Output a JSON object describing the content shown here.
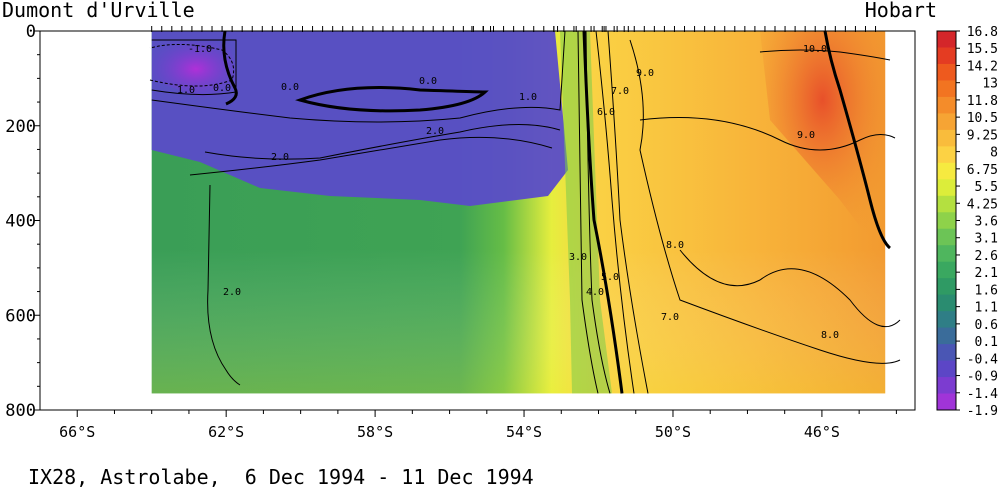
{
  "chart_data": {
    "type": "heatmap",
    "title": "IX28, Astrolabe,  6 Dec 1994 - 11 Dec 1994",
    "left_label": "Dumont d'Urville",
    "right_label": "Hobart",
    "x_ticks": [
      "66°S",
      "62°S",
      "58°S",
      "54°S",
      "50°S",
      "46°S"
    ],
    "x_tick_values": [
      66,
      62,
      58,
      54,
      50,
      46
    ],
    "xlim": [
      67,
      43.5
    ],
    "y_ticks": [
      "0",
      "200",
      "400",
      "600",
      "800"
    ],
    "y_tick_values": [
      0,
      200,
      400,
      600,
      800
    ],
    "ylim": [
      0,
      800
    ],
    "data_extent": {
      "lat": [
        64,
        44.3
      ],
      "depth": [
        0,
        765
      ]
    },
    "colorbar": {
      "labels": [
        "16.8",
        "15.5",
        "14.2",
        "13",
        "11.8",
        "10.5",
        "9.25",
        "8",
        "6.75",
        "5.5",
        "4.25",
        "3.6",
        "3.1",
        "2.6",
        "2.1",
        "1.6",
        "1.1",
        "0.6",
        "0.1",
        "-0.4",
        "-0.9",
        "-1.4",
        "-1.9"
      ],
      "colors": [
        "#d4262a",
        "#e43c22",
        "#ee5a1e",
        "#f27421",
        "#f48c2a",
        "#f6a434",
        "#f9bc3c",
        "#fcd244",
        "#f6ea40",
        "#dced3a",
        "#b4e040",
        "#8ed24a",
        "#6cc456",
        "#4fb65e",
        "#3aa860",
        "#2f9a64",
        "#2a8c70",
        "#2f7e86",
        "#3a6c9a",
        "#4a56b4",
        "#5c46c6",
        "#7c3cd0",
        "#a034d8"
      ]
    },
    "contour_labels": [
      "-1.0",
      "1.0",
      "0.0",
      "0.0",
      "0.0",
      "1.0",
      "2.0",
      "2.0",
      "2.0",
      "3.0",
      "4.0",
      "5.0",
      "6.0",
      "7.0",
      "7.0",
      "8.0",
      "8.0",
      "9.0",
      "9.0",
      "10.0"
    ],
    "series": [
      {
        "values": [
          0.0,
          1.0,
          2.0,
          3.0,
          4.0,
          5.0,
          6.0,
          7.0,
          8.0,
          9.0,
          10.0
        ]
      }
    ],
    "grid": false
  }
}
